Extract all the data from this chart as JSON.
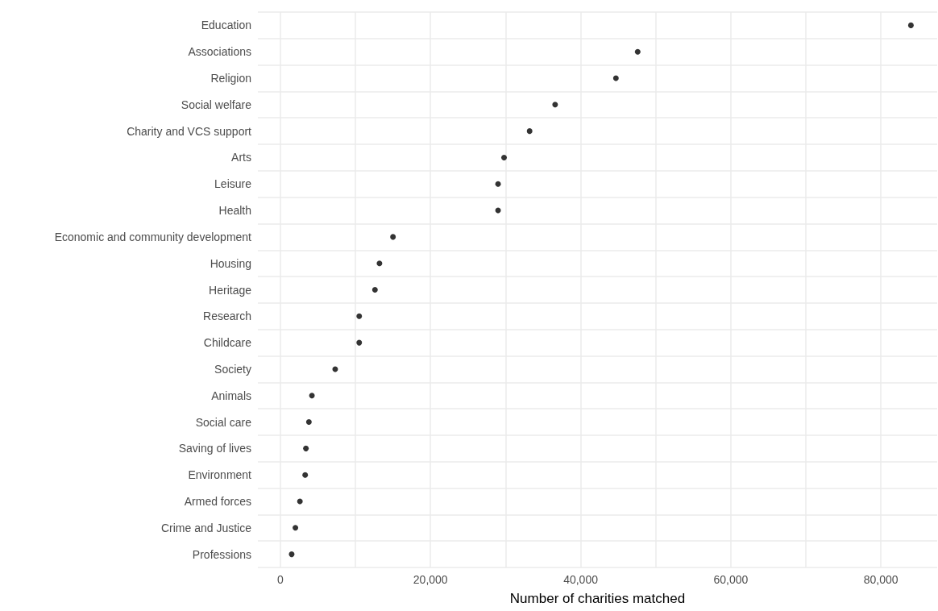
{
  "chart_data": {
    "type": "scatter",
    "orientation": "horizontal",
    "xlabel": "Number of charities matched",
    "categories": [
      "Education",
      "Associations",
      "Religion",
      "Social welfare",
      "Charity and VCS support",
      "Arts",
      "Leisure",
      "Health",
      "Economic and community development",
      "Housing",
      "Heritage",
      "Research",
      "Childcare",
      "Society",
      "Animals",
      "Social care",
      "Saving of lives",
      "Environment",
      "Armed forces",
      "Crime and Justice",
      "Professions"
    ],
    "values": [
      84000,
      47600,
      44700,
      36600,
      33200,
      29800,
      29000,
      29000,
      15000,
      13200,
      12600,
      10500,
      10500,
      7300,
      4200,
      3800,
      3400,
      3300,
      2600,
      2000,
      1500
    ],
    "color": "#000000",
    "marker": "circle",
    "xlim": [
      -3000,
      87500
    ],
    "xticks": [
      0,
      {
        "value": 10000,
        "label": null
      },
      {
        "value": 20000,
        "label": "20,000"
      },
      {
        "value": 30000,
        "label": null
      },
      {
        "value": 40000,
        "label": "40,000"
      },
      {
        "value": 50000,
        "label": null
      },
      {
        "value": 60000,
        "label": "60,000"
      },
      {
        "value": 70000,
        "label": null
      },
      {
        "value": 80000,
        "label": "80,000"
      }
    ],
    "grid": true
  }
}
